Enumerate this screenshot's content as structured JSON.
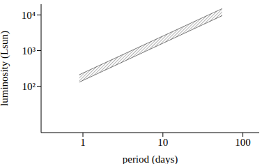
{
  "chart_data": {
    "type": "area",
    "xlabel": "period (days)",
    "ylabel": "luminosity (Lsun)",
    "x": [
      0.9,
      55
    ],
    "low": [
      130,
      9500
    ],
    "high": [
      210,
      15000
    ],
    "color": "#000000",
    "log": true,
    "grid": false,
    "xlim": [
      0.3,
      160
    ],
    "ylim": [
      5,
      20000
    ],
    "xticks": [
      1,
      10,
      100
    ],
    "yticks": [
      {
        "value": 100,
        "label": "10²"
      },
      {
        "value": 1000,
        "label": "10³"
      },
      {
        "value": 10000,
        "label": "10⁴"
      }
    ]
  }
}
